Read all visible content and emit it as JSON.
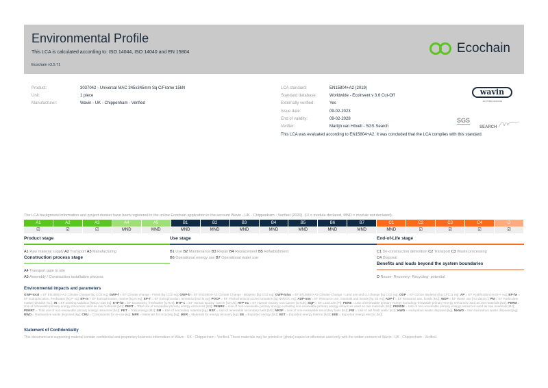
{
  "header": {
    "title": "Environmental Profile",
    "subtitle": "This LCA is calculated according to: ISO 14044, ISO 14040 and EN 15804",
    "version": "Ecochain v3.5.71",
    "logo": "Ecochain",
    "logo_color": "#5cc41e"
  },
  "product_info": [
    {
      "label": "Product:",
      "value": "3037042 - Universal MAC 345x345mm Sq C/Frame 15kN"
    },
    {
      "label": "Unit:",
      "value": "1 piece"
    },
    {
      "label": "Manufacturer:",
      "value": "Wavin - UK - Chippenham - Verified"
    }
  ],
  "lca_info": [
    {
      "label": "LCA standard:",
      "value": "EN15804+A2 (2019)"
    },
    {
      "label": "Standard database:",
      "value": "Worldwide - Ecoinvent v 3.6 Cut-Off"
    },
    {
      "label": "Externally verified:",
      "value": "Yes"
    },
    {
      "label": "Issue date:",
      "value": "09-02-2023"
    },
    {
      "label": "End of validity:",
      "value": "09-02-2028"
    },
    {
      "label": "Verifier:",
      "value": "Martijn van Hövell - SGS Search"
    }
  ],
  "conclusion": "This LCA was evaluated according to EN15804+A2. It was concluded that the LCA complies with this standard.",
  "logos": {
    "wavin": "wavin",
    "wavin_sub": "An Orbia business",
    "sgs": "SGS",
    "search": "SEARCH"
  },
  "note": "The LCA background information and project dossier have been registered in the online Ecochain application in the account Wavin - UK - Chippenham - Verified (2020). (☑ = module declared, MND = module not declared).",
  "modules": [
    {
      "code": "A1",
      "status": "☑",
      "color": "#5cc41e"
    },
    {
      "code": "A2",
      "status": "☑",
      "color": "#5cc41e"
    },
    {
      "code": "A3",
      "status": "☑",
      "color": "#5cc41e"
    },
    {
      "code": "A4",
      "status": "MND",
      "color": "#9ddf7a"
    },
    {
      "code": "A5",
      "status": "MND",
      "color": "#9ddf7a"
    },
    {
      "code": "B1",
      "status": "MND",
      "color": "#0f2a44"
    },
    {
      "code": "B2",
      "status": "MND",
      "color": "#0f2a44"
    },
    {
      "code": "B3",
      "status": "MND",
      "color": "#0f2a44"
    },
    {
      "code": "B4",
      "status": "MND",
      "color": "#0f2a44"
    },
    {
      "code": "B5",
      "status": "MND",
      "color": "#0f2a44"
    },
    {
      "code": "B6",
      "status": "MND",
      "color": "#0f2a44"
    },
    {
      "code": "B7",
      "status": "MND",
      "color": "#0f2a44"
    },
    {
      "code": "C1",
      "status": "MND",
      "color": "#ff6a1a"
    },
    {
      "code": "C2",
      "status": "☑",
      "color": "#ff6a1a"
    },
    {
      "code": "C3",
      "status": "☑",
      "color": "#ff6a1a"
    },
    {
      "code": "C4",
      "status": "☑",
      "color": "#ff6a1a"
    },
    {
      "code": "D",
      "status": "☑",
      "color": "#ffab80"
    }
  ],
  "stages": {
    "product": {
      "title": "Product stage",
      "color": "#5cc41e",
      "items": [
        [
          "A1",
          "Raw material supply"
        ],
        [
          "A2",
          "Transport"
        ],
        [
          "A3",
          "Manufacturing"
        ]
      ]
    },
    "construction": {
      "title": "Construction process stage",
      "color": "#9ddf7a",
      "items": [
        [
          "A4",
          "Transport gate to site"
        ],
        [
          "A5",
          "Assembly / Construction installation process"
        ]
      ]
    },
    "use": {
      "title": "Use stage",
      "color": "#2d4560",
      "items": [
        [
          "B1",
          "Use"
        ],
        [
          "B2",
          "Maintenance"
        ],
        [
          "B3",
          "Repair"
        ],
        [
          "B4",
          "Replacement"
        ],
        [
          "B5",
          "Refurbishment"
        ],
        [
          "B6",
          "Operational energy use"
        ],
        [
          "B7",
          "Operational water use"
        ]
      ]
    },
    "eol": {
      "title": "End-of-Life stage",
      "color": "#ff6a1a",
      "items": [
        [
          "C1",
          "De-construction demolition"
        ],
        [
          "C2",
          "Transport"
        ],
        [
          "C3",
          "Waste processing"
        ],
        [
          "C4",
          "Disposal"
        ]
      ]
    },
    "beyond": {
      "title": "Benefits and loads beyond the system boundaries",
      "color": "#ffab80",
      "items": [
        [
          "D",
          "Reuse- Recovery- Recycling- potential"
        ]
      ]
    }
  },
  "impacts_title": "Environmental impacts and parameters",
  "glossary": [
    [
      "GWP-total",
      "EF EN15804+A2 Climate Change [kg CO2 eq]"
    ],
    [
      "GWP-f",
      "EF Climate change - Fossil [kg CO2 eq]"
    ],
    [
      "GWP-b",
      "EF EN15804+A2 Climate Change - Biogenic [kg CO2 eq]"
    ],
    [
      "GWP-luluc",
      "EF EN15804+A2 Climate Change - Land use and LU change [kg CO2 eq]"
    ],
    [
      "ODP",
      "EF Ozone depletion [kg CFC11 eq]"
    ],
    [
      "AP",
      "EF Acidification [mol H+ eq]"
    ],
    [
      "EP-fw",
      "EF Eutrophication, freshwater [kg P eq]"
    ],
    [
      "EP-m",
      "EF Eutrophication, marine [kg N eq]"
    ],
    [
      "EP-T",
      "EF Eutrophication, terrestrial [mol N eq]"
    ],
    [
      "POCP",
      "EF Photochemical ozone formation [kg NMVOC eq]"
    ],
    [
      "ADP-mm",
      "EF Resource use, minerals and metals [kg Sb eq]"
    ],
    [
      "ADP-f",
      "EF Resource use, fossils [MJ]"
    ],
    [
      "WDP",
      "EF Water use [m3 depriv.]"
    ],
    [
      "PM",
      "EF Particulate matter [disease inc.]"
    ],
    [
      "IR",
      "EF Ionising radiation [kBq U-235 eq]"
    ],
    [
      "ETP-fw",
      "EF Ecotoxicity, freshwater [CTUe]"
    ],
    [
      "HTP-c",
      "EF Human toxicity, cancer [CTUh]"
    ],
    [
      "HTP-nc",
      "EF Human toxicity, non-cancer [CTUh]"
    ],
    [
      "SQP",
      "EF Land use [Pt]"
    ],
    [
      "PERE",
      "Use of renewable primary energy excluding renewable primary energy resources used as raw materials [MJ]"
    ],
    [
      "PERM",
      "Use of renewable primary energy resources used as raw materials [MJ]"
    ],
    [
      "PERT",
      "Total use of renewable primary energy resources [MJ]"
    ],
    [
      "PENRE",
      "Use of non-renewable primary energy excluding non-renewable primary energy resources used as raw materials [MJ]"
    ],
    [
      "PENRM",
      "Use of non-renewable primary energy resources used as raw materials [MJ]"
    ],
    [
      "PENRT",
      "Total use of non-renewable primary energy resources [MJ]"
    ],
    [
      "PET",
      "Total energy [MJ]"
    ],
    [
      "SM",
      "Use of secondary material [kg]"
    ],
    [
      "RSF",
      "Use of renewable secondary fuels [MJ]"
    ],
    [
      "NRSF",
      "Use of non-renewable secondary fuels [MJ]"
    ],
    [
      "FW",
      "Use of net fresh water [m3]"
    ],
    [
      "HWD",
      "Hazardous waste disposed [kg]"
    ],
    [
      "NHWD",
      "Non-hazardous waste disposed [kg]"
    ],
    [
      "RWD",
      "Radioactive waste disposed [kg]"
    ],
    [
      "CRU",
      "Components for re-use [kg]"
    ],
    [
      "MFR",
      "Materials for recycling [kg]"
    ],
    [
      "MER",
      "Materials for energy recovery [kg]"
    ],
    [
      "EE",
      "Exported energy [MJ]"
    ],
    [
      "EET",
      "Exported energy thermic [MJ]"
    ],
    [
      "EEE",
      "Exported energy electric [MJ]"
    ]
  ],
  "confidentiality_title": "Statement of Confidentiality",
  "confidentiality": "This document and supporting material contain confidential and proprietary business information of Wavin - UK - Chippenham - Verified. These materials may be printed or (photo) copied or otherwise used only with the written consent of Wavin - UK - Chippenham - Verified."
}
